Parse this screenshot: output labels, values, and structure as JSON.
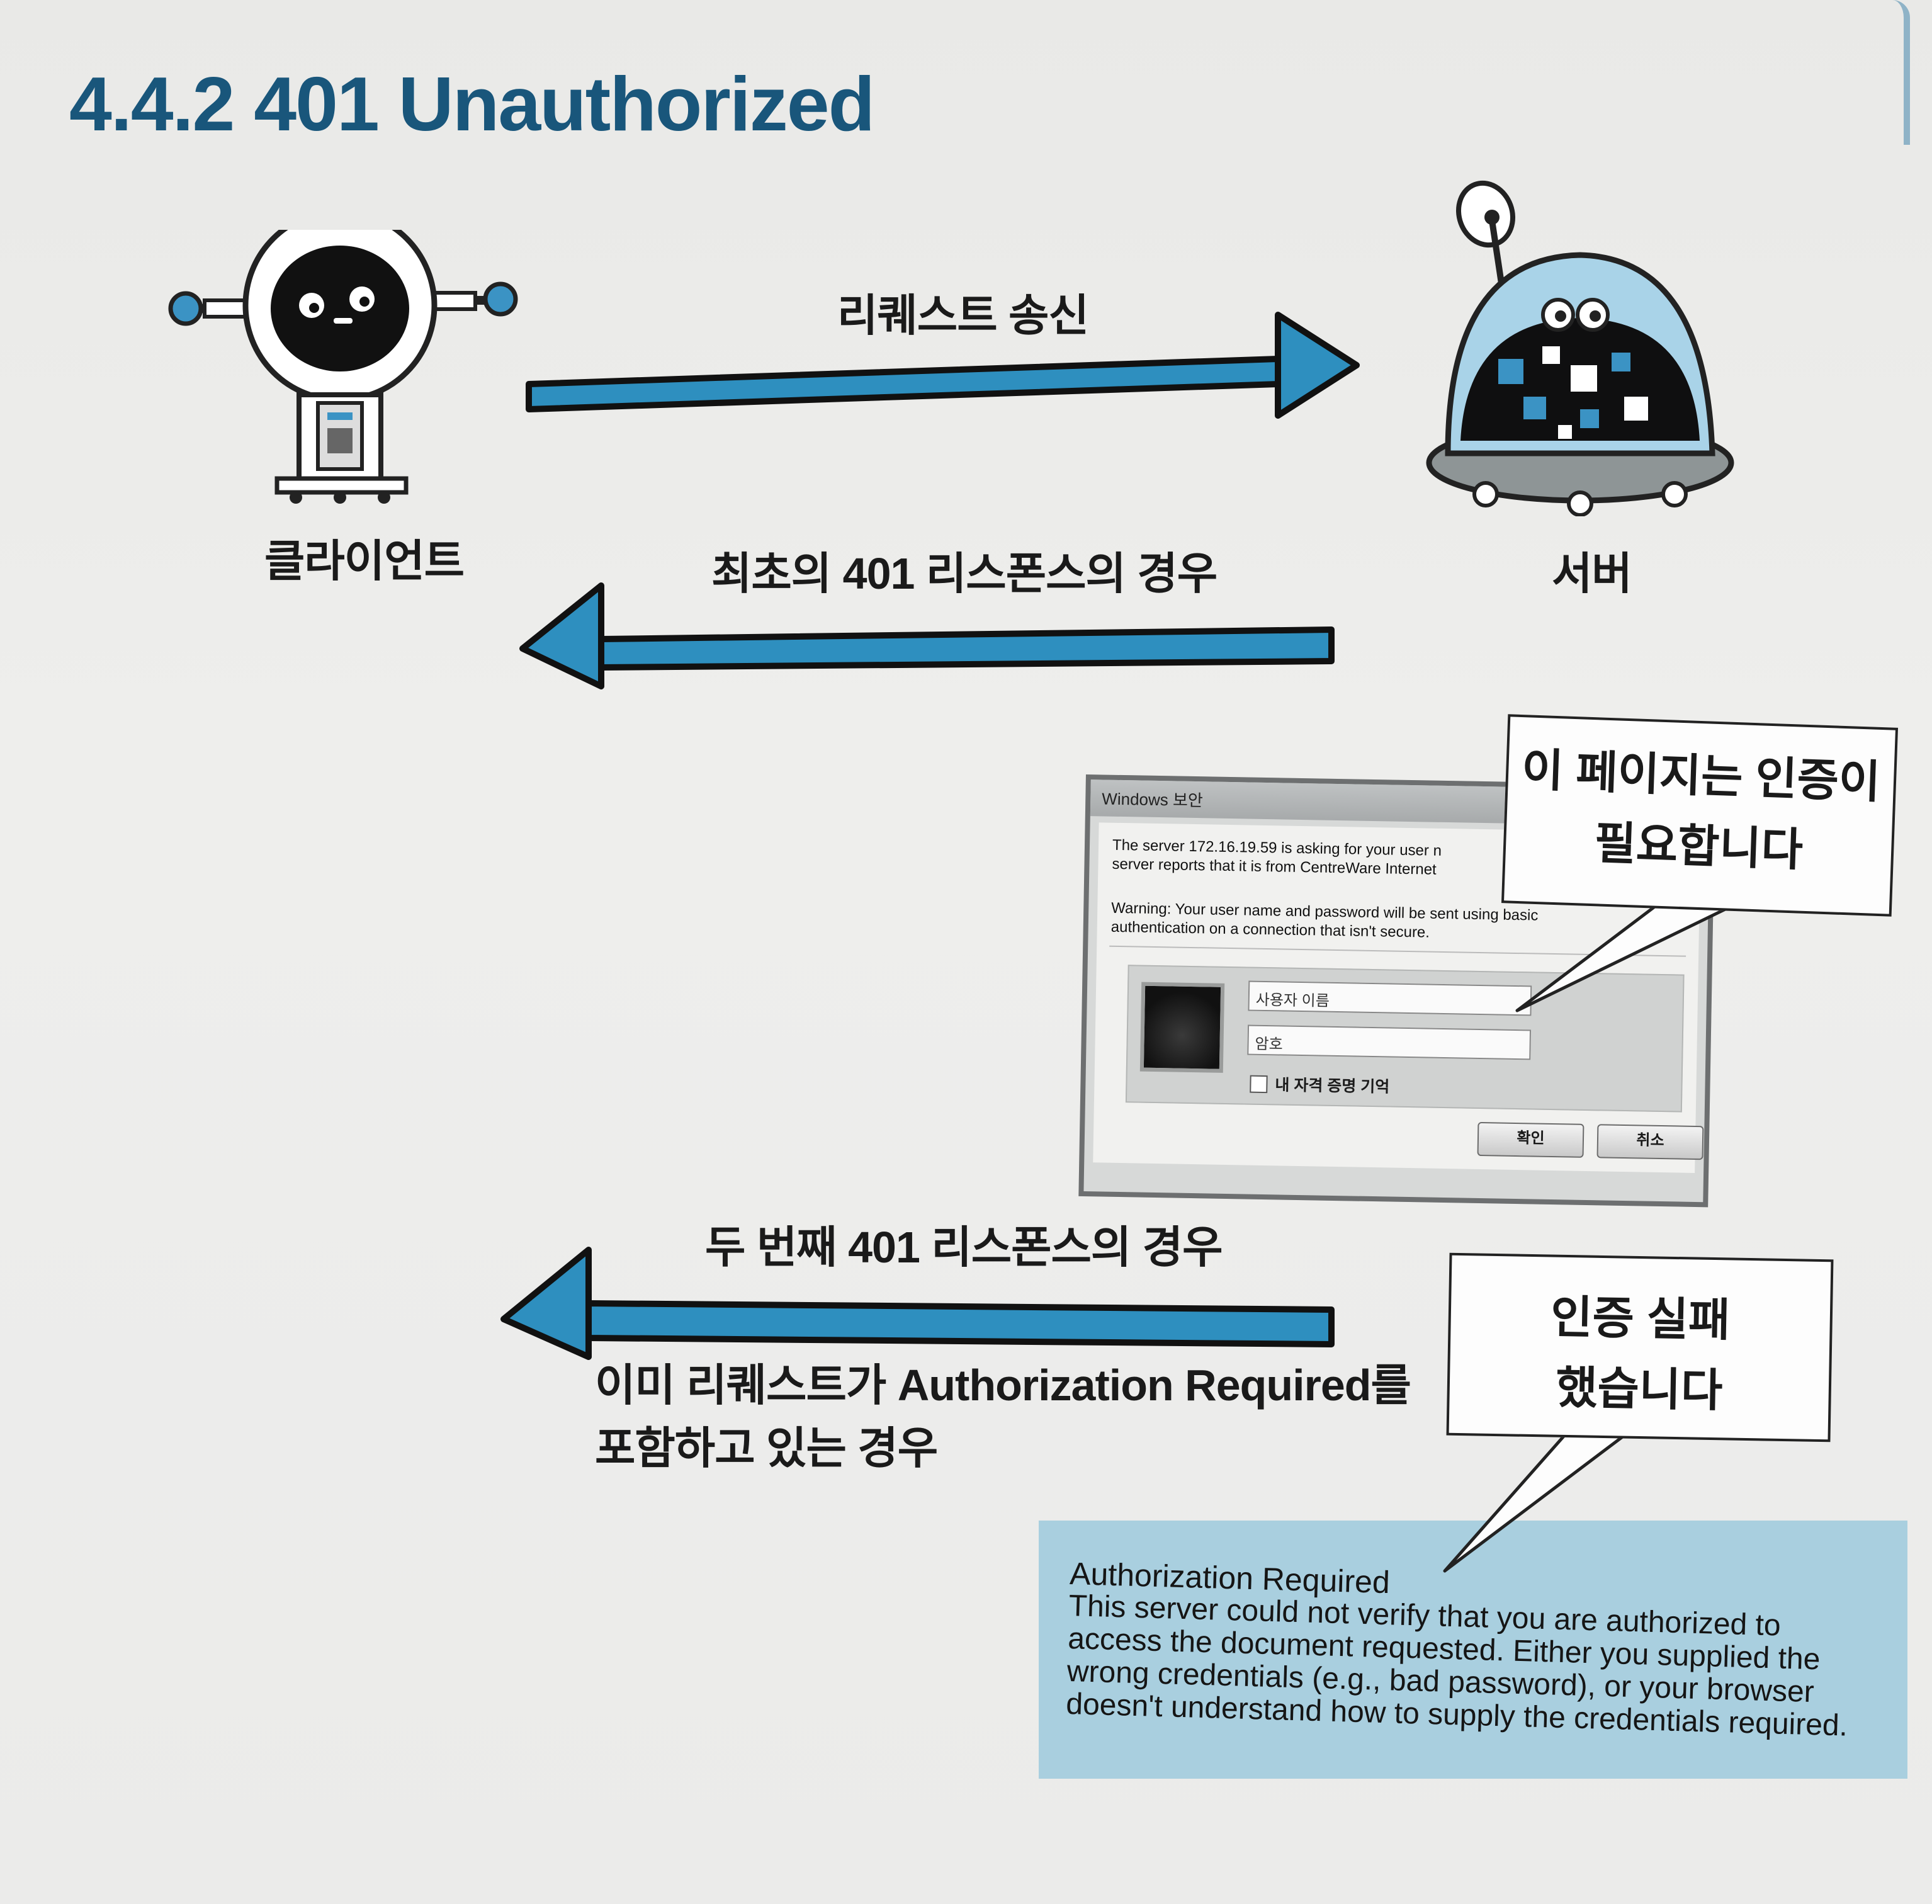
{
  "title": "4.4.2 401 Unauthorized",
  "actors": {
    "client": "클라이언트",
    "server": "서버"
  },
  "arrows": {
    "request": "리퀘스트 송신",
    "first_response": "최초의 401 리스폰스의 경우",
    "second_response": "두 번째 401 리스폰스의 경우",
    "second_note": "이미 리퀘스트가 Authorization Required를 포함하고 있는 경우"
  },
  "dialog": {
    "title": "Windows 보안",
    "message_line1": "The server 172.16.19.59 is asking for your user n",
    "message_line2": "server reports that it is from CentreWare Internet",
    "warning_line1": "Warning: Your user name and password will be sent using basic",
    "warning_line2": "authentication on a connection that isn't secure.",
    "username_placeholder": "사용자 이름",
    "password_placeholder": "암호",
    "remember_label": "내 자격 증명 기억",
    "ok_button": "확인",
    "cancel_button": "취소"
  },
  "callouts": {
    "auth_required_line1": "이 페이지는 인증이",
    "auth_required_line2": "필요합니다",
    "auth_failed_line1": "인증 실패",
    "auth_failed_line2": "했습니다"
  },
  "error_page": {
    "title": "Authorization Required",
    "body": "This server could not verify that you are authorized to access the document requested. Either you supplied the wrong credentials (e.g., bad password), or your browser doesn't understand how to supply the credentials required."
  },
  "colors": {
    "title": "#19567b",
    "arrow": "#2e8fbf",
    "error_bg": "#a9cfdf",
    "robot_accent": "#3b93c4"
  }
}
